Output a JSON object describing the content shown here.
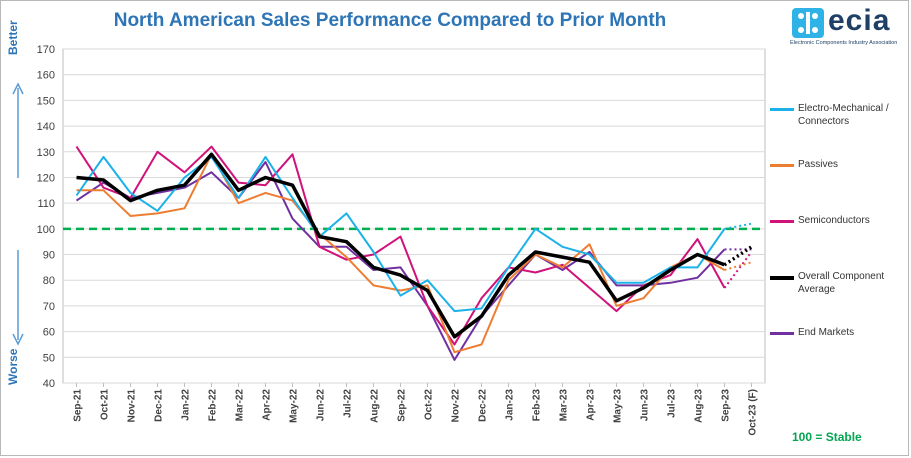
{
  "chart_data": {
    "type": "line",
    "title": "North American Sales Performance Compared to Prior Month",
    "xlabel": "",
    "ylabel": "",
    "ylim": [
      40,
      170
    ],
    "yticks": [
      40,
      50,
      60,
      70,
      80,
      90,
      100,
      110,
      120,
      130,
      140,
      150,
      160,
      170
    ],
    "categories": [
      "Sep-21",
      "Oct-21",
      "Nov-21",
      "Dec-21",
      "Jan-22",
      "Feb-22",
      "Mar-22",
      "Apr-22",
      "May-22",
      "Jun-22",
      "Jul-22",
      "Aug-22",
      "Sep-22",
      "Oct-22",
      "Nov-22",
      "Dec-22",
      "Jan-23",
      "Feb-23",
      "Mar-23",
      "Apr-23",
      "May-23",
      "Jun-23",
      "Jul-23",
      "Aug-23",
      "Sep-23",
      "Oct-23 (F)"
    ],
    "grid": true,
    "legend_position": "right",
    "reference_line": {
      "value": 100,
      "label": "100 = Stable",
      "color": "#00b050"
    },
    "side_labels": {
      "top": "Better",
      "bottom": "Worse"
    },
    "series": [
      {
        "name": "Electro-Mechanical / Connectors",
        "color": "#1ab2e8",
        "values": [
          113,
          128,
          114,
          107,
          120,
          128,
          112,
          128,
          112,
          97,
          106,
          91,
          74,
          80,
          68,
          69,
          85,
          100,
          93,
          90,
          79,
          79,
          85,
          85,
          100,
          102
        ]
      },
      {
        "name": "Passives",
        "color": "#ed7d31",
        "values": [
          115,
          115,
          105,
          106,
          108,
          129,
          110,
          114,
          111,
          98,
          89,
          78,
          76,
          78,
          52,
          55,
          80,
          90,
          85,
          94,
          70,
          73,
          85,
          90,
          84,
          87
        ]
      },
      {
        "name": "Semiconductors",
        "color": "#d0127a",
        "values": [
          132,
          116,
          112,
          130,
          122,
          132,
          118,
          117,
          129,
          93,
          88,
          90,
          97,
          70,
          55,
          73,
          85,
          83,
          86,
          77,
          68,
          78,
          82,
          96,
          77,
          91
        ]
      },
      {
        "name": "Overall Component Average",
        "color": "#000000",
        "values": [
          120,
          119,
          111,
          115,
          117,
          129,
          115,
          120,
          117,
          97,
          95,
          85,
          82,
          76,
          58,
          66,
          82,
          91,
          89,
          87,
          72,
          77,
          84,
          90,
          86,
          93
        ]
      },
      {
        "name": "End Markets",
        "color": "#7030a0",
        "values": [
          111,
          118,
          112,
          114,
          116,
          122,
          112,
          126,
          104,
          93,
          93,
          84,
          85,
          70,
          49,
          66,
          78,
          90,
          84,
          91,
          78,
          78,
          79,
          81,
          92,
          92
        ]
      }
    ]
  },
  "logo": {
    "text": "ecia",
    "subtext": "Electronic Components Industry Association"
  },
  "legend": {
    "items": [
      {
        "label": "Electro-Mechanical / Connectors",
        "color": "#1ab2e8"
      },
      {
        "label": "Passives",
        "color": "#ed7d31"
      },
      {
        "label": "Semiconductors",
        "color": "#d0127a"
      },
      {
        "label": "Overall Component Average",
        "color": "#000000"
      },
      {
        "label": "End Markets",
        "color": "#7030a0"
      }
    ]
  },
  "annotations": {
    "better": "Better",
    "worse": "Worse",
    "stable": "100 = Stable"
  }
}
